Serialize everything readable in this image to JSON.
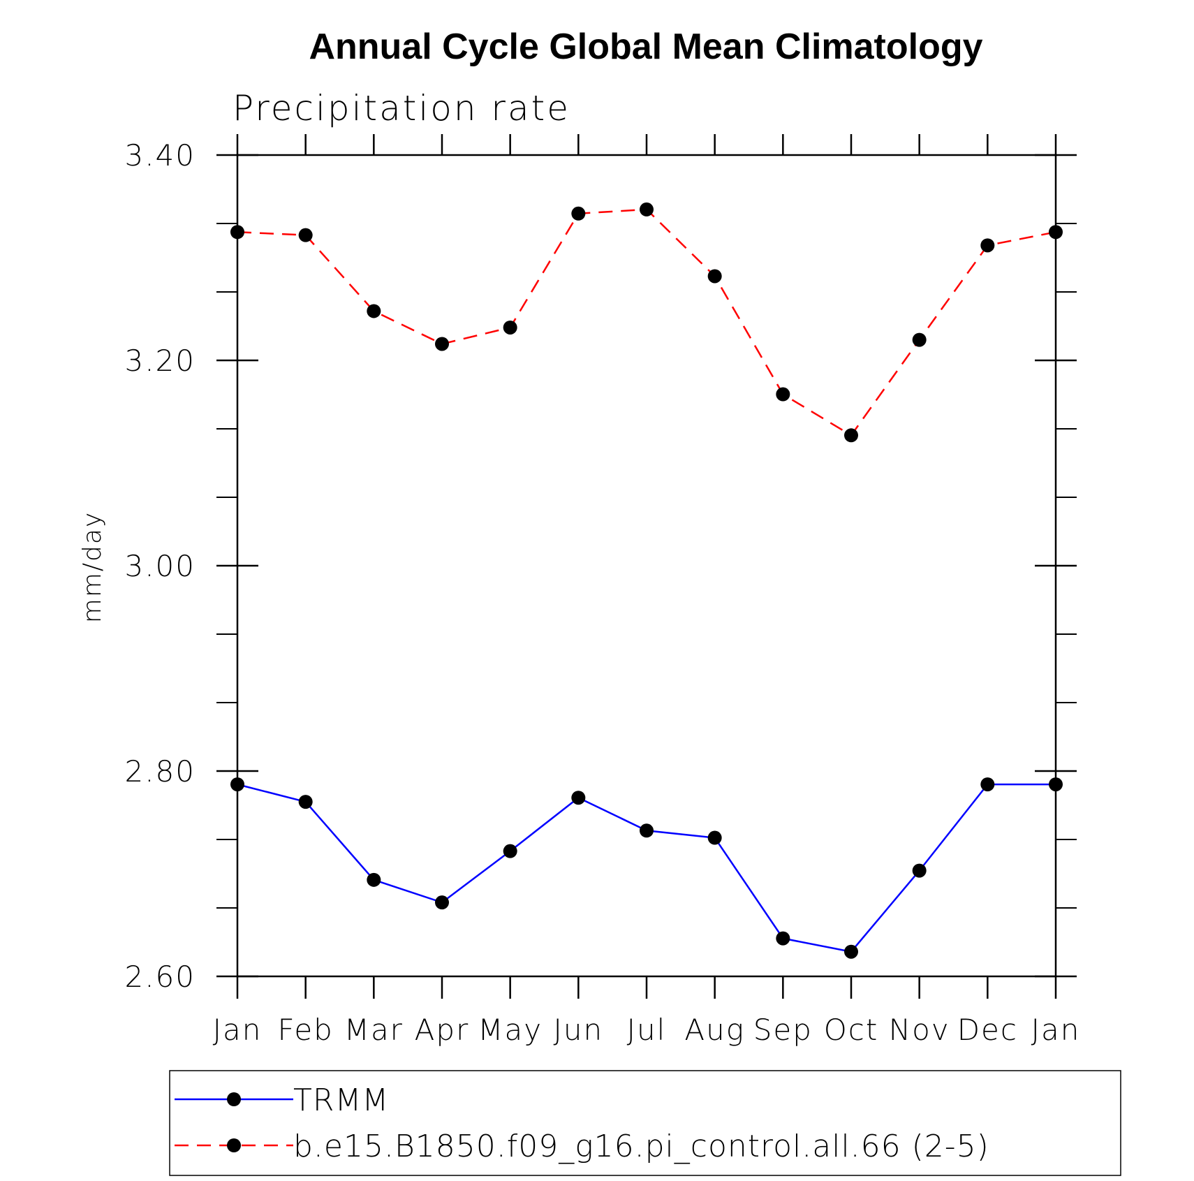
{
  "chart_data": {
    "type": "line",
    "title": "Annual Cycle Global Mean Climatology",
    "subtitle": "Precipitation rate",
    "ylabel": "mm/day",
    "xlabel": "",
    "categories": [
      "Jan",
      "Feb",
      "Mar",
      "Apr",
      "May",
      "Jun",
      "Jul",
      "Aug",
      "Sep",
      "Oct",
      "Nov",
      "Dec",
      "Jan"
    ],
    "ylim": [
      2.6,
      3.4
    ],
    "yticks": [
      "2.60",
      "2.80",
      "3.00",
      "3.20",
      "3.40"
    ],
    "grid": false,
    "legend_position": "bottom",
    "series": [
      {
        "name": "TRMM",
        "color": "#0000ff",
        "dash": "solid",
        "marker": "filled-circle",
        "values": [
          2.787,
          2.77,
          2.694,
          2.672,
          2.722,
          2.774,
          2.742,
          2.735,
          2.637,
          2.624,
          2.703,
          2.787,
          2.787
        ]
      },
      {
        "name": "b.e15.B1850.f09_g16.pi_control.all.66 (2-5)",
        "color": "#ff0000",
        "dash": "dashed",
        "marker": "filled-circle",
        "values": [
          3.325,
          3.322,
          3.248,
          3.216,
          3.232,
          3.343,
          3.347,
          3.282,
          3.167,
          3.127,
          3.22,
          3.312,
          3.325
        ]
      }
    ]
  }
}
